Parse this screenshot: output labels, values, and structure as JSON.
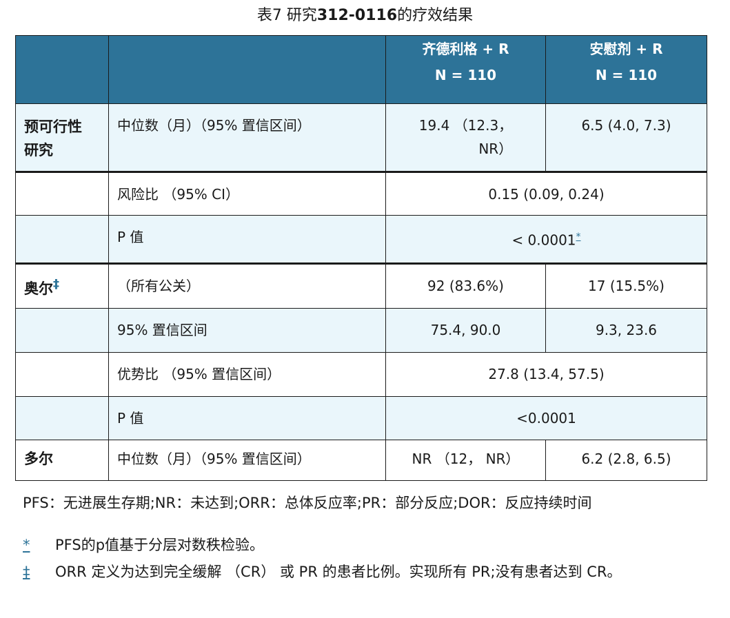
{
  "caption": {
    "prefix": "表7 研究",
    "study": "312-0116",
    "suffix": "的疗效结果"
  },
  "header": {
    "col3_line1": "齐德利格 + R",
    "col3_line2": "N = 110",
    "col4_line1": "安慰剂 + R",
    "col4_line2": "N = 110"
  },
  "rows": [
    {
      "section": "预可行性\n研究",
      "label": "中位数（月）（95% 置信区间）",
      "col3": "19.4 （12.3，\nNR）",
      "col4": "6.5 (4.0, 7.3)"
    },
    {
      "section": "",
      "label": "风险比 （95% CI）",
      "merged": "0.15 (0.09, 0.24)"
    },
    {
      "section": "",
      "label": "P 值",
      "merged": "< 0.0001",
      "merged_mark": "*"
    },
    {
      "section": "奥尔",
      "section_mark": "‡",
      "label": "（所有公关）",
      "col3": "92 (83.6%)",
      "col4": "17 (15.5%)"
    },
    {
      "section": "",
      "label": "95% 置信区间",
      "col3": "75.4, 90.0",
      "col4": "9.3, 23.6"
    },
    {
      "section": "",
      "label": "优势比 （95% 置信区间）",
      "merged": "27.8 (13.4, 57.5)"
    },
    {
      "section": "",
      "label": "P 值",
      "merged": "<0.0001"
    },
    {
      "section": "多尔",
      "label": "中位数（月）（95% 置信区间）",
      "col3": "NR （12， NR）",
      "col4": "6.2 (2.8, 6.5)"
    }
  ],
  "abbreviations": "PFS：无进展生存期;NR：未达到;ORR：总体反应率;PR：部分反应;DOR：反应持续时间",
  "footnotes": [
    {
      "mark": "*",
      "text": "PFS的p值基于分层对数秩检验。"
    },
    {
      "mark": "‡",
      "text": "ORR 定义为达到完全缓解 （CR） 或 PR 的患者比例。实现所有 PR;没有患者达到 CR。"
    }
  ],
  "colors": {
    "header_bg": "#2d7398",
    "shaded_row": "#eaf6fb",
    "link": "#2d7398"
  }
}
